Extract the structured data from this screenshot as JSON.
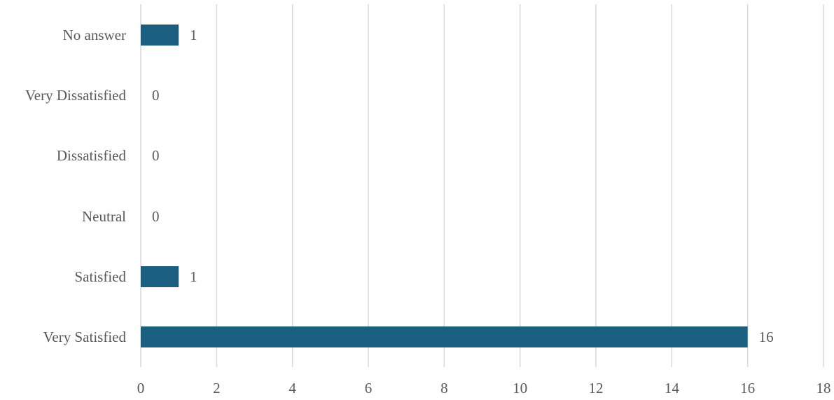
{
  "chart_data": {
    "type": "bar",
    "orientation": "horizontal",
    "categories": [
      "No answer",
      "Very Dissatisfied",
      "Dissatisfied",
      "Neutral",
      "Satisfied",
      "Very Satisfied"
    ],
    "values": [
      1,
      0,
      0,
      0,
      1,
      16
    ],
    "xlim": [
      0,
      18
    ],
    "x_ticks": [
      "0",
      "2",
      "4",
      "6",
      "8",
      "10",
      "12",
      "14",
      "16",
      "18"
    ],
    "grid": "vertical",
    "legend": "none",
    "data_labels": [
      "1",
      "0",
      "0",
      "0",
      "1",
      "16"
    ],
    "bar_color": "#1a5f80",
    "grid_color": "#d9d9d9",
    "text_color": "#595959"
  }
}
